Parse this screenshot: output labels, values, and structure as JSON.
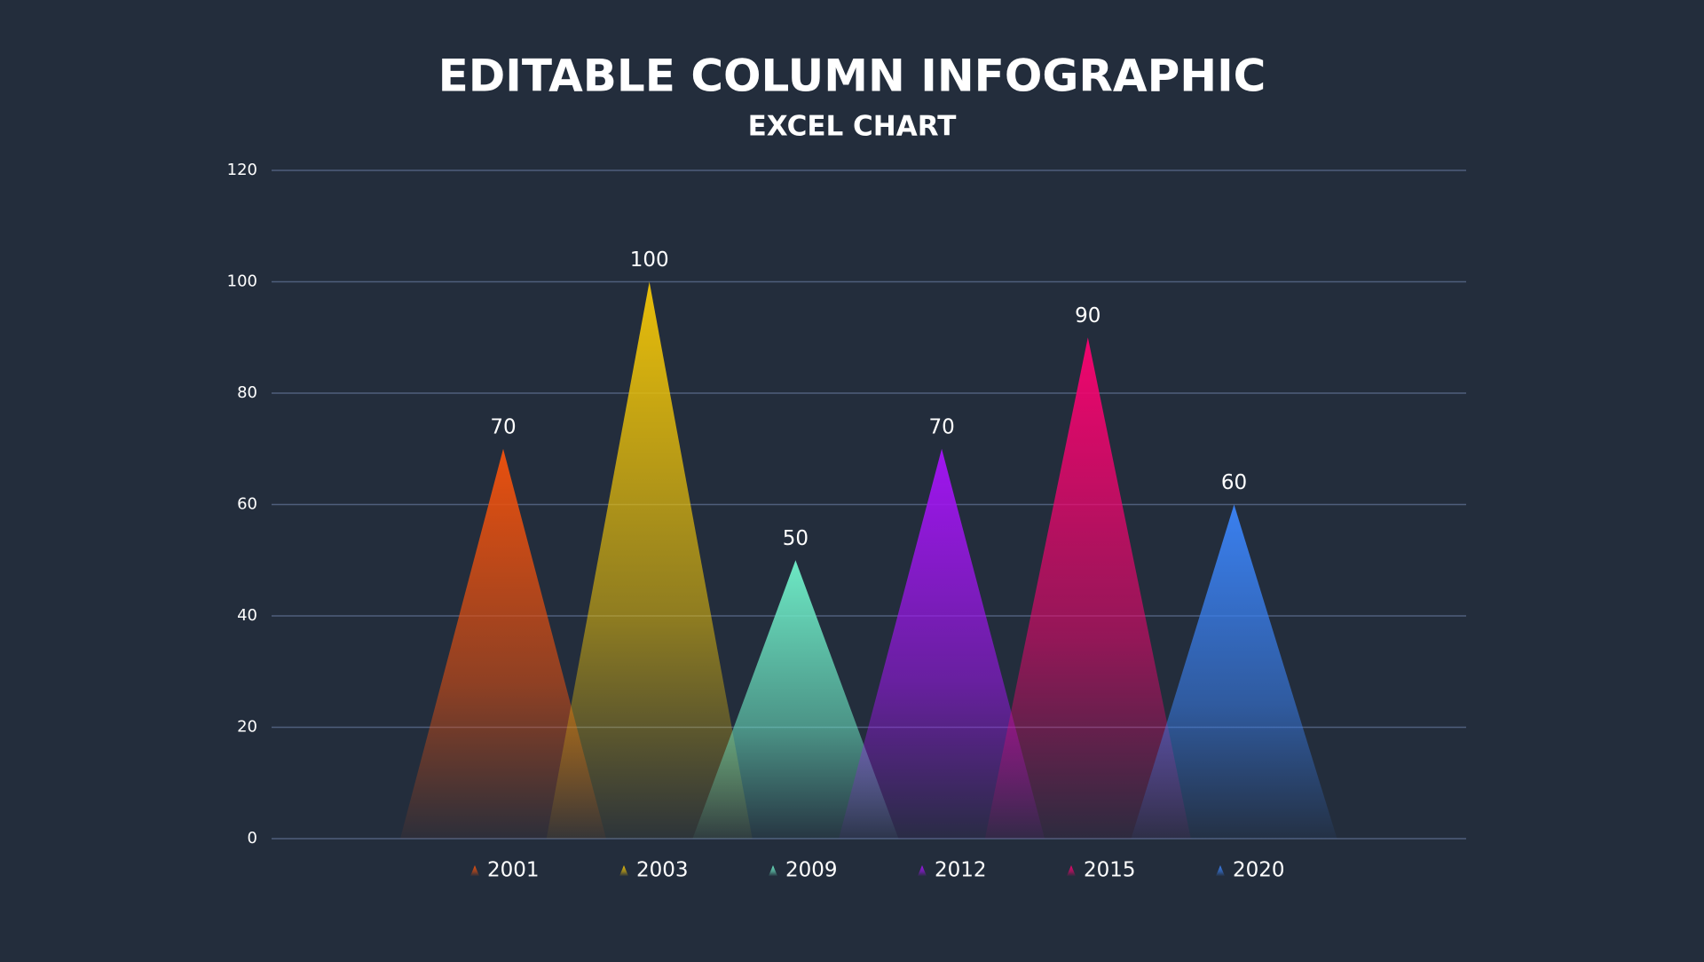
{
  "chart_data": {
    "type": "bar",
    "mark_shape": "triangle",
    "title": "EDITABLE COLUMN INFOGRAPHIC",
    "subtitle": "EXCEL CHART",
    "series": [
      {
        "name": "2001",
        "color": "#e8500f",
        "values": [
          70
        ]
      },
      {
        "name": "2003",
        "color": "#e8be0a",
        "values": [
          100
        ]
      },
      {
        "name": "2009",
        "color": "#6de8c4",
        "values": [
          50
        ]
      },
      {
        "name": "2012",
        "color": "#a015f0",
        "values": [
          70
        ]
      },
      {
        "name": "2015",
        "color": "#f0056e",
        "values": [
          90
        ]
      },
      {
        "name": "2020",
        "color": "#3a80f0",
        "values": [
          60
        ]
      }
    ],
    "ylim": [
      0,
      120
    ],
    "yticks": [
      0,
      20,
      40,
      60,
      80,
      100,
      120
    ],
    "grid": true,
    "legend": "bottom"
  }
}
